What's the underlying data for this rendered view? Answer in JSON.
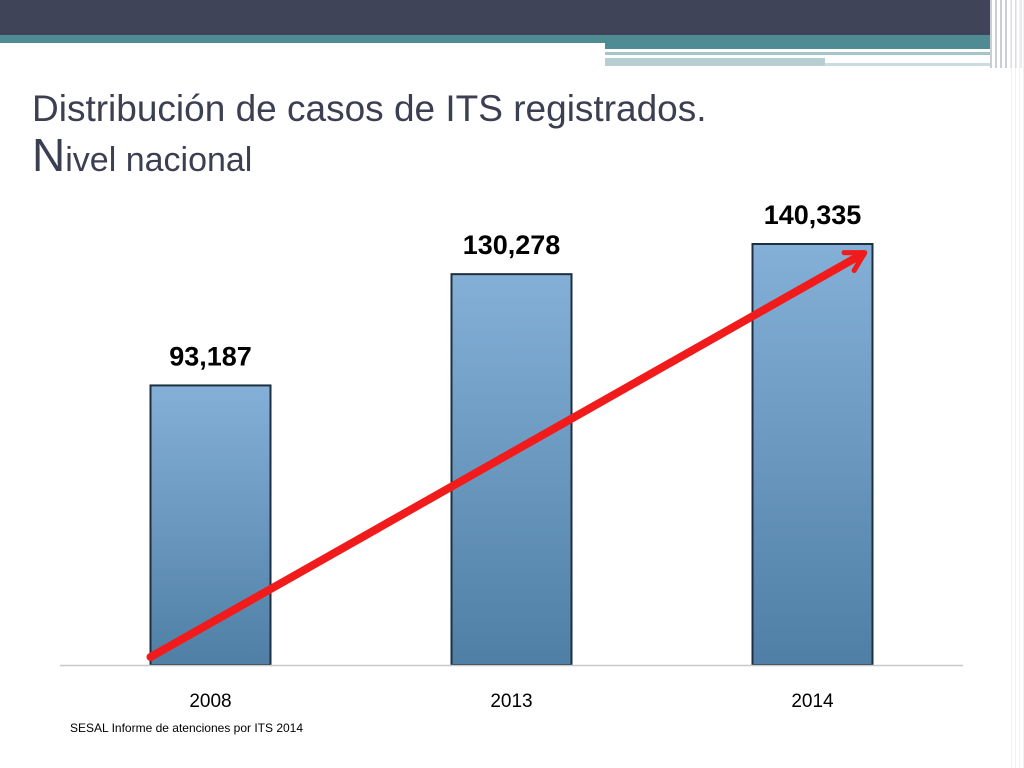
{
  "title": {
    "line1": "Distribución de casos de ITS registrados.",
    "line2_first": "N",
    "line2_rest": "ivel nacional"
  },
  "source_note": "SESAL Informe de atenciones por  ITS 2014",
  "colors": {
    "header_dark": "#3f4458",
    "header_teal": "#4e8b92",
    "bar_top": "#84b0d8",
    "bar_bottom": "#4f7fa5",
    "trend_arrow": "#f21b1b",
    "title_text": "#3b3f51"
  },
  "chart_data": {
    "type": "bar",
    "categories": [
      "2008",
      "2013",
      "2014"
    ],
    "values": [
      93187,
      130278,
      140335
    ],
    "data_labels": [
      "93,187",
      "130,278",
      "140,335"
    ],
    "title": "",
    "xlabel": "",
    "ylabel": "",
    "ylim": [
      0,
      150000
    ],
    "grid": false,
    "legend": "none",
    "annotation": "trend-arrow"
  }
}
